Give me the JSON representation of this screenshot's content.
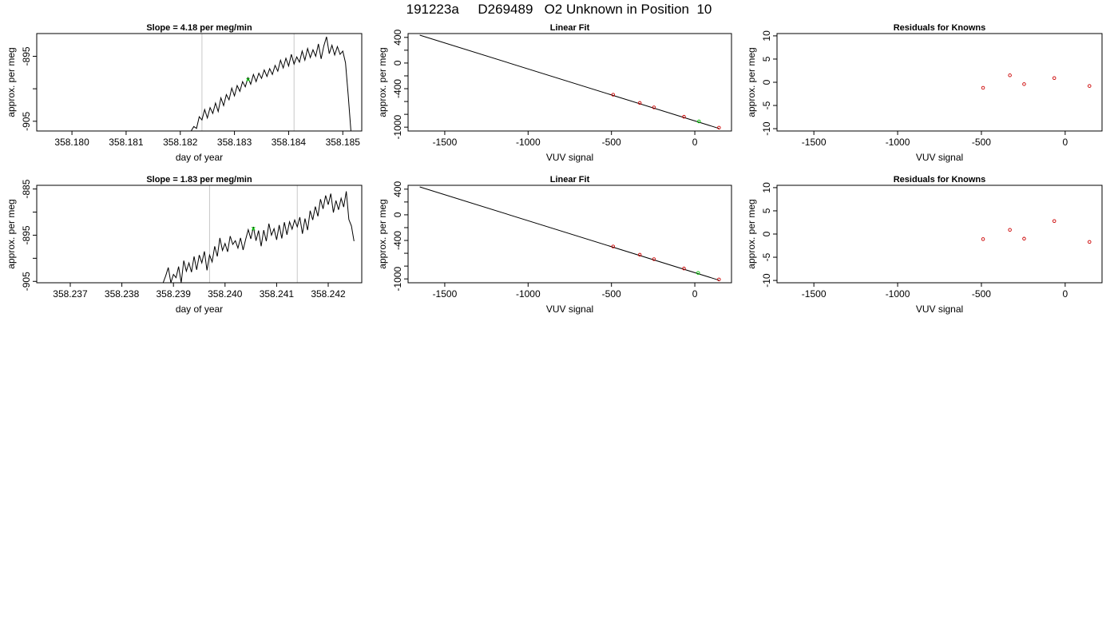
{
  "page": {
    "title": "191223a     D269489   O2 Unknown in Position  10"
  },
  "chart_data": [
    {
      "type": "line",
      "title": "Slope =  4.18  per meg/min",
      "xlabel": "day of year",
      "ylabel": "approx. per meg",
      "xlim": [
        358.17935,
        358.18535
      ],
      "ylim": [
        -906.5,
        -891.5
      ],
      "xticks": [
        358.18,
        358.181,
        358.182,
        358.183,
        358.184,
        358.185
      ],
      "xtick_labels": [
        "358.180",
        "358.181",
        "358.182",
        "358.183",
        "358.184",
        "358.185"
      ],
      "yticks": [
        -905,
        -900,
        -895
      ],
      "ytick_labels": [
        "-905",
        "",
        "-895"
      ],
      "vlines": [
        358.1824,
        358.1841
      ],
      "series": [
        {
          "values": [
            [
              358.1822,
              -906.5
            ],
            [
              358.18225,
              -905.8
            ],
            [
              358.1823,
              -906.1
            ],
            [
              358.18235,
              -904.3
            ],
            [
              358.1824,
              -904.8
            ],
            [
              358.18245,
              -903.2
            ],
            [
              358.1825,
              -904.5
            ],
            [
              358.18255,
              -902.9
            ],
            [
              358.1826,
              -903.8
            ],
            [
              358.18265,
              -902.2
            ],
            [
              358.1827,
              -903.5
            ],
            [
              358.18275,
              -901.4
            ],
            [
              358.1828,
              -902.6
            ],
            [
              358.18285,
              -900.9
            ],
            [
              358.1829,
              -901.7
            ],
            [
              358.18295,
              -899.9
            ],
            [
              358.183,
              -901.1
            ],
            [
              358.18305,
              -899.5
            ],
            [
              358.1831,
              -900.4
            ],
            [
              358.18315,
              -898.9
            ],
            [
              358.1832,
              -899.7
            ],
            [
              358.18325,
              -898.3
            ],
            [
              358.1833,
              -899.3
            ],
            [
              358.18335,
              -897.8
            ],
            [
              358.1834,
              -898.9
            ],
            [
              358.18345,
              -897.6
            ],
            [
              358.1835,
              -898.4
            ],
            [
              358.18355,
              -897.1
            ],
            [
              358.1836,
              -898.1
            ],
            [
              358.18365,
              -896.9
            ],
            [
              358.1837,
              -897.8
            ],
            [
              358.18375,
              -896.4
            ],
            [
              358.1838,
              -897.3
            ],
            [
              358.18385,
              -895.6
            ],
            [
              358.1839,
              -896.8
            ],
            [
              358.18395,
              -895.3
            ],
            [
              358.184,
              -896.5
            ],
            [
              358.18405,
              -894.7
            ],
            [
              358.1841,
              -896.2
            ],
            [
              358.18415,
              -895.1
            ],
            [
              358.1842,
              -895.9
            ],
            [
              358.18425,
              -894.2
            ],
            [
              358.1843,
              -895.6
            ],
            [
              358.18435,
              -893.8
            ],
            [
              358.1844,
              -895.2
            ],
            [
              358.18445,
              -894.0
            ],
            [
              358.1845,
              -895.0
            ],
            [
              358.18455,
              -893.1
            ],
            [
              358.1846,
              -895.4
            ],
            [
              358.18465,
              -893.4
            ],
            [
              358.1847,
              -892.0
            ],
            [
              358.18475,
              -894.6
            ],
            [
              358.1848,
              -893.3
            ],
            [
              358.18485,
              -894.8
            ],
            [
              358.1849,
              -893.5
            ],
            [
              358.18495,
              -894.7
            ],
            [
              358.185,
              -894.2
            ],
            [
              358.18505,
              -896.0
            ],
            [
              358.1851,
              -901.0
            ],
            [
              358.18515,
              -906.5
            ]
          ]
        }
      ],
      "markers": [
        {
          "x": 358.18325,
          "y": -898.6,
          "color": "#00cc00"
        }
      ]
    },
    {
      "type": "line",
      "title": "Linear Fit",
      "xlabel": "VUV signal",
      "ylabel": "approx. per meg",
      "xlim": [
        -1720,
        220
      ],
      "ylim": [
        -1060,
        460
      ],
      "xticks": [
        -1500,
        -1000,
        -500,
        0
      ],
      "xtick_labels": [
        "-1500",
        "-1000",
        "-500",
        "0"
      ],
      "yticks": [
        -1000,
        -800,
        -600,
        -400,
        -200,
        0,
        200,
        400
      ],
      "ytick_labels": [
        "-1000",
        "",
        "",
        "-400",
        "",
        "0",
        "",
        "400"
      ],
      "series": [
        {
          "values": [
            [
              -1650,
              435
            ],
            [
              145,
              -1020
            ]
          ]
        }
      ],
      "points": [
        {
          "x": -490,
          "y": -494,
          "color": "#cc0000"
        },
        {
          "x": -330,
          "y": -623,
          "color": "#cc0000"
        },
        {
          "x": -245,
          "y": -692,
          "color": "#cc0000"
        },
        {
          "x": -65,
          "y": -838,
          "color": "#cc0000"
        },
        {
          "x": 145,
          "y": -1008,
          "color": "#cc0000"
        },
        {
          "x": 25,
          "y": -911,
          "color": "#00cc00"
        }
      ]
    },
    {
      "type": "scatter",
      "title": "Residuals for Knowns",
      "xlabel": "VUV signal",
      "ylabel": "approx. per meg",
      "xlim": [
        -1720,
        220
      ],
      "ylim": [
        -10.5,
        10.5
      ],
      "xticks": [
        -1500,
        -1000,
        -500,
        0
      ],
      "xtick_labels": [
        "-1500",
        "-1000",
        "-500",
        "0"
      ],
      "yticks": [
        -10,
        -5,
        0,
        5,
        10
      ],
      "ytick_labels": [
        "-10",
        "-5",
        "0",
        "5",
        "10"
      ],
      "points": [
        {
          "x": -490,
          "y": -1.2,
          "color": "#cc0000"
        },
        {
          "x": -330,
          "y": 1.5,
          "color": "#cc0000"
        },
        {
          "x": -245,
          "y": -0.4,
          "color": "#cc0000"
        },
        {
          "x": -65,
          "y": 0.9,
          "color": "#cc0000"
        },
        {
          "x": 145,
          "y": -0.8,
          "color": "#cc0000"
        }
      ]
    },
    {
      "type": "line",
      "title": "Slope =  1.83  per meg/min",
      "xlabel": "day of year",
      "ylabel": "approx. per meg",
      "xlim": [
        358.23635,
        358.24265
      ],
      "ylim": [
        -905.3,
        -884.2
      ],
      "xticks": [
        358.237,
        358.238,
        358.239,
        358.24,
        358.241,
        358.242
      ],
      "xtick_labels": [
        "358.237",
        "358.238",
        "358.239",
        "358.240",
        "358.241",
        "358.242"
      ],
      "yticks": [
        -905,
        -900,
        -895,
        -890,
        -885
      ],
      "ytick_labels": [
        "-905",
        "",
        "-895",
        "",
        "-885"
      ],
      "vlines": [
        358.2397,
        358.2414
      ],
      "series": [
        {
          "values": [
            [
              358.2388,
              -905.3
            ],
            [
              358.23885,
              -903.8
            ],
            [
              358.2389,
              -902.0
            ],
            [
              358.23895,
              -905.3
            ],
            [
              358.239,
              -903.5
            ],
            [
              358.23905,
              -904.2
            ],
            [
              358.2391,
              -901.8
            ],
            [
              358.23915,
              -905.3
            ],
            [
              358.2392,
              -900.5
            ],
            [
              358.23925,
              -902.8
            ],
            [
              358.2393,
              -901.0
            ],
            [
              358.23935,
              -903.0
            ],
            [
              358.2394,
              -899.6
            ],
            [
              358.23945,
              -902.5
            ],
            [
              358.2395,
              -899.3
            ],
            [
              358.23955,
              -901.0
            ],
            [
              358.2396,
              -898.5
            ],
            [
              358.23965,
              -902.6
            ],
            [
              358.2397,
              -899.3
            ],
            [
              358.23975,
              -900.8
            ],
            [
              358.2398,
              -897.4
            ],
            [
              358.23985,
              -899.6
            ],
            [
              358.2399,
              -895.6
            ],
            [
              358.23995,
              -898.3
            ],
            [
              358.24,
              -896.8
            ],
            [
              358.24005,
              -898.6
            ],
            [
              358.2401,
              -895.2
            ],
            [
              358.24015,
              -897.0
            ],
            [
              358.2402,
              -896.2
            ],
            [
              358.24025,
              -897.8
            ],
            [
              358.2403,
              -895.6
            ],
            [
              358.24035,
              -898.2
            ],
            [
              358.2404,
              -895.9
            ],
            [
              358.24045,
              -893.8
            ],
            [
              358.2405,
              -895.8
            ],
            [
              358.24055,
              -893.2
            ],
            [
              358.2406,
              -896.2
            ],
            [
              358.24065,
              -894.0
            ],
            [
              358.2407,
              -897.4
            ],
            [
              358.24075,
              -893.9
            ],
            [
              358.2408,
              -896.3
            ],
            [
              358.24085,
              -892.5
            ],
            [
              358.2409,
              -895.0
            ],
            [
              358.24095,
              -893.6
            ],
            [
              358.241,
              -896.0
            ],
            [
              358.24105,
              -892.8
            ],
            [
              358.2411,
              -895.7
            ],
            [
              358.24115,
              -892.2
            ],
            [
              358.2412,
              -894.9
            ],
            [
              358.24125,
              -892.1
            ],
            [
              358.2413,
              -893.7
            ],
            [
              358.24135,
              -891.7
            ],
            [
              358.2414,
              -893.2
            ],
            [
              358.24145,
              -891.1
            ],
            [
              358.2415,
              -894.7
            ],
            [
              358.24155,
              -891.4
            ],
            [
              358.2416,
              -893.9
            ],
            [
              358.24165,
              -889.7
            ],
            [
              358.2417,
              -891.7
            ],
            [
              358.24175,
              -888.8
            ],
            [
              358.2418,
              -890.9
            ],
            [
              358.24185,
              -887.2
            ],
            [
              358.2419,
              -889.3
            ],
            [
              358.24195,
              -886.4
            ],
            [
              358.242,
              -888.4
            ],
            [
              358.24205,
              -886.0
            ],
            [
              358.2421,
              -890.1
            ],
            [
              358.24215,
              -887.5
            ],
            [
              358.2422,
              -889.5
            ],
            [
              358.24225,
              -887.0
            ],
            [
              358.2423,
              -888.9
            ],
            [
              358.24235,
              -885.5
            ],
            [
              358.2424,
              -891.6
            ],
            [
              358.24245,
              -893.0
            ],
            [
              358.2425,
              -896.3
            ]
          ]
        }
      ],
      "markers": [
        {
          "x": 358.24055,
          "y": -893.6,
          "color": "#00cc00"
        }
      ]
    },
    {
      "type": "line",
      "title": "Linear Fit",
      "xlabel": "VUV signal",
      "ylabel": "approx. per meg",
      "xlim": [
        -1720,
        220
      ],
      "ylim": [
        -1060,
        460
      ],
      "xticks": [
        -1500,
        -1000,
        -500,
        0
      ],
      "xtick_labels": [
        "-1500",
        "-1000",
        "-500",
        "0"
      ],
      "yticks": [
        -1000,
        -800,
        -600,
        -400,
        -200,
        0,
        200,
        400
      ],
      "ytick_labels": [
        "-1000",
        "",
        "",
        "-400",
        "",
        "0",
        "",
        "400"
      ],
      "series": [
        {
          "values": [
            [
              -1650,
              435
            ],
            [
              145,
              -1020
            ]
          ]
        }
      ],
      "points": [
        {
          "x": -490,
          "y": -494,
          "color": "#cc0000"
        },
        {
          "x": -330,
          "y": -623,
          "color": "#cc0000"
        },
        {
          "x": -245,
          "y": -692,
          "color": "#cc0000"
        },
        {
          "x": -65,
          "y": -838,
          "color": "#cc0000"
        },
        {
          "x": 145,
          "y": -1008,
          "color": "#cc0000"
        },
        {
          "x": 20,
          "y": -907,
          "color": "#00cc00"
        }
      ]
    },
    {
      "type": "scatter",
      "title": "Residuals for Knowns",
      "xlabel": "VUV signal",
      "ylabel": "approx. per meg",
      "xlim": [
        -1720,
        220
      ],
      "ylim": [
        -10.5,
        10.5
      ],
      "xticks": [
        -1500,
        -1000,
        -500,
        0
      ],
      "xtick_labels": [
        "-1500",
        "-1000",
        "-500",
        "0"
      ],
      "yticks": [
        -10,
        -5,
        0,
        5,
        10
      ],
      "ytick_labels": [
        "-10",
        "-5",
        "0",
        "5",
        "10"
      ],
      "points": [
        {
          "x": -490,
          "y": -1.1,
          "color": "#cc0000"
        },
        {
          "x": -330,
          "y": 0.9,
          "color": "#cc0000"
        },
        {
          "x": -245,
          "y": -1.0,
          "color": "#cc0000"
        },
        {
          "x": -65,
          "y": 2.8,
          "color": "#cc0000"
        },
        {
          "x": 145,
          "y": -1.7,
          "color": "#cc0000"
        }
      ]
    }
  ]
}
